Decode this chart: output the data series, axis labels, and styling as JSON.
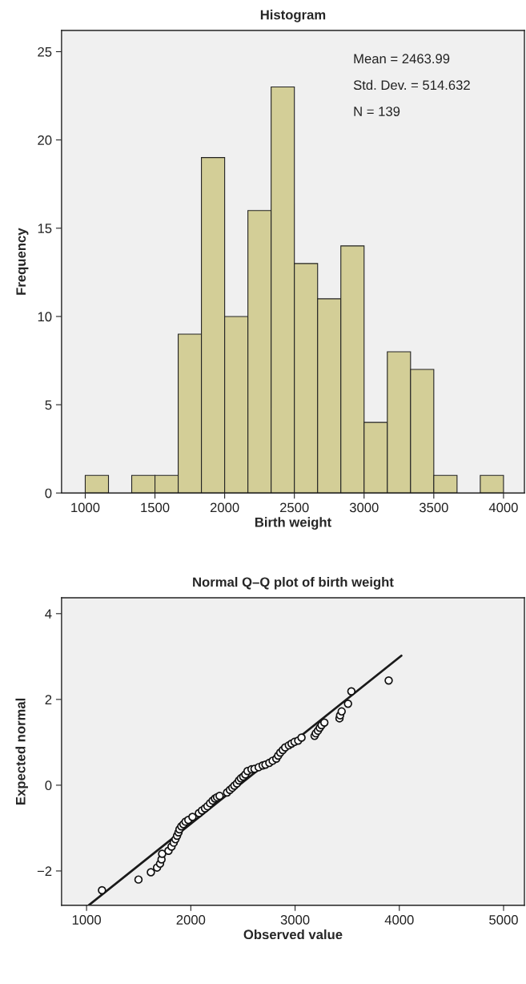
{
  "chart_data": [
    {
      "type": "histogram",
      "title": "Histogram",
      "xlabel": "Birth weight",
      "ylabel": "Frequency",
      "bins": [
        1000,
        1166.7,
        1333.3,
        1500,
        1666.7,
        1833.3,
        2000,
        2166.7,
        2333.3,
        2500,
        2666.7,
        2833.3,
        3000,
        3166.7,
        3333.3,
        3500,
        3666.7,
        3833.3,
        4000
      ],
      "values": [
        1,
        0,
        1,
        1,
        9,
        19,
        10,
        16,
        23,
        13,
        11,
        14,
        4,
        8,
        7,
        1,
        0,
        1
      ],
      "color": "#d3ce97",
      "xlim": [
        830,
        4150
      ],
      "ylim": [
        0,
        26.2
      ],
      "xticks": [
        1000,
        1500,
        2000,
        2500,
        3000,
        3500,
        4000
      ],
      "yticks": [
        0,
        5,
        10,
        15,
        20,
        25
      ],
      "annotations": [
        "Mean = 2463.99",
        "Std. Dev. = 514.632",
        "N = 139"
      ]
    },
    {
      "type": "scatter",
      "title": "Normal Q–Q plot of birth weight",
      "xlabel": "Observed value",
      "ylabel": "Expected normal",
      "xlim": [
        760,
        5200
      ],
      "ylim": [
        -2.8,
        4.37
      ],
      "xticks": [
        1000,
        2000,
        3000,
        4000,
        5000
      ],
      "yticks": [
        {
          "value": -2,
          "label": "−2"
        },
        0,
        2,
        4
      ],
      "series": [
        {
          "type": "scatter",
          "marker": "circle",
          "color": "#ffffff",
          "x": [
            1148,
            1498,
            1617,
            1676,
            1705,
            1719,
            1725,
            1786,
            1815,
            1836,
            1853,
            1868,
            1882,
            1891,
            1909,
            1929,
            1949,
            1976,
            2016,
            2078,
            2107,
            2136,
            2159,
            2185,
            2209,
            2232,
            2252,
            2276,
            2348,
            2375,
            2398,
            2418,
            2442,
            2462,
            2480,
            2503,
            2523,
            2544,
            2582,
            2611,
            2651,
            2689,
            2716,
            2753,
            2785,
            2820,
            2838,
            2858,
            2882,
            2905,
            2940,
            2966,
            2995,
            3030,
            3062,
            3187,
            3199,
            3219,
            3237,
            3254,
            3281,
            3426,
            3432,
            3447,
            3508,
            3540,
            3898
          ],
          "values": [
            -2.45,
            -2.2,
            -2.03,
            -1.92,
            -1.83,
            -1.73,
            -1.6,
            -1.53,
            -1.43,
            -1.34,
            -1.26,
            -1.18,
            -1.1,
            -1.03,
            -0.96,
            -0.91,
            -0.85,
            -0.81,
            -0.74,
            -0.65,
            -0.59,
            -0.54,
            -0.49,
            -0.42,
            -0.36,
            -0.31,
            -0.28,
            -0.25,
            -0.17,
            -0.11,
            -0.06,
            -0.01,
            0.04,
            0.11,
            0.16,
            0.2,
            0.25,
            0.33,
            0.37,
            0.38,
            0.42,
            0.46,
            0.48,
            0.52,
            0.57,
            0.62,
            0.69,
            0.76,
            0.82,
            0.88,
            0.93,
            0.97,
            1.01,
            1.04,
            1.11,
            1.15,
            1.21,
            1.27,
            1.34,
            1.4,
            1.46,
            1.56,
            1.63,
            1.72,
            1.9,
            2.19,
            2.44
          ]
        },
        {
          "type": "line",
          "marker": "none",
          "color": "#1a1a1a",
          "x": [
            1020,
            4020
          ],
          "values": [
            -2.8,
            3.02
          ]
        }
      ]
    }
  ]
}
